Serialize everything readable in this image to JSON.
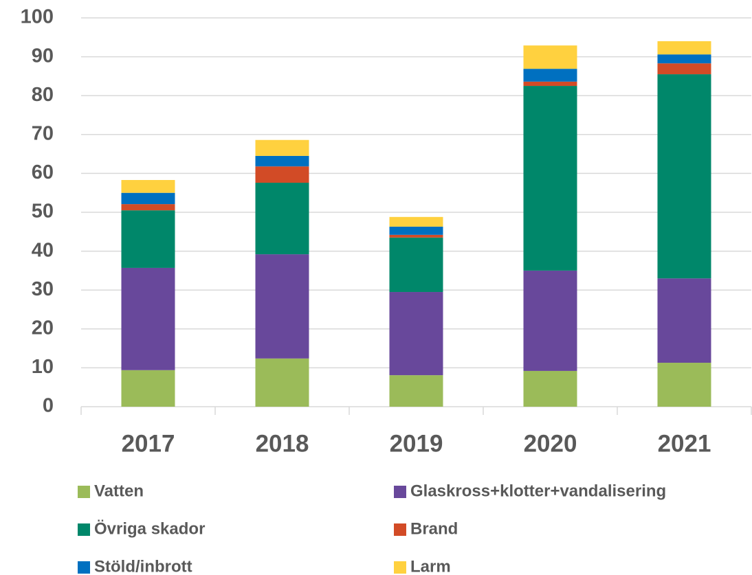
{
  "chart_data": {
    "type": "stacked_bar",
    "categories": [
      "2017",
      "2018",
      "2019",
      "2020",
      "2021"
    ],
    "series": [
      {
        "name": "Vatten",
        "color": "#9bbb59",
        "values": [
          9.4,
          12.4,
          8.1,
          9.2,
          11.3
        ]
      },
      {
        "name": "Glaskross+klotter+vandalisering",
        "color": "#68489b",
        "values": [
          26.3,
          26.8,
          21.4,
          25.8,
          21.7
        ]
      },
      {
        "name": "Övriga skador",
        "color": "#00876a",
        "values": [
          14.8,
          18.4,
          14.0,
          47.5,
          52.5
        ]
      },
      {
        "name": "Brand",
        "color": "#d24b26",
        "values": [
          1.6,
          4.2,
          0.7,
          1.1,
          2.8
        ]
      },
      {
        "name": "Stöld/inbrott",
        "color": "#0070c0",
        "values": [
          2.9,
          2.7,
          2.1,
          3.3,
          2.3
        ]
      },
      {
        "name": "Larm",
        "color": "#ffd13f",
        "values": [
          3.3,
          4.1,
          2.5,
          6.0,
          3.4
        ]
      }
    ],
    "ylim": [
      0,
      100
    ],
    "yticks": [
      0,
      10,
      20,
      30,
      40,
      50,
      60,
      70,
      80,
      90,
      100
    ],
    "grid": true,
    "legend": "bottom"
  }
}
